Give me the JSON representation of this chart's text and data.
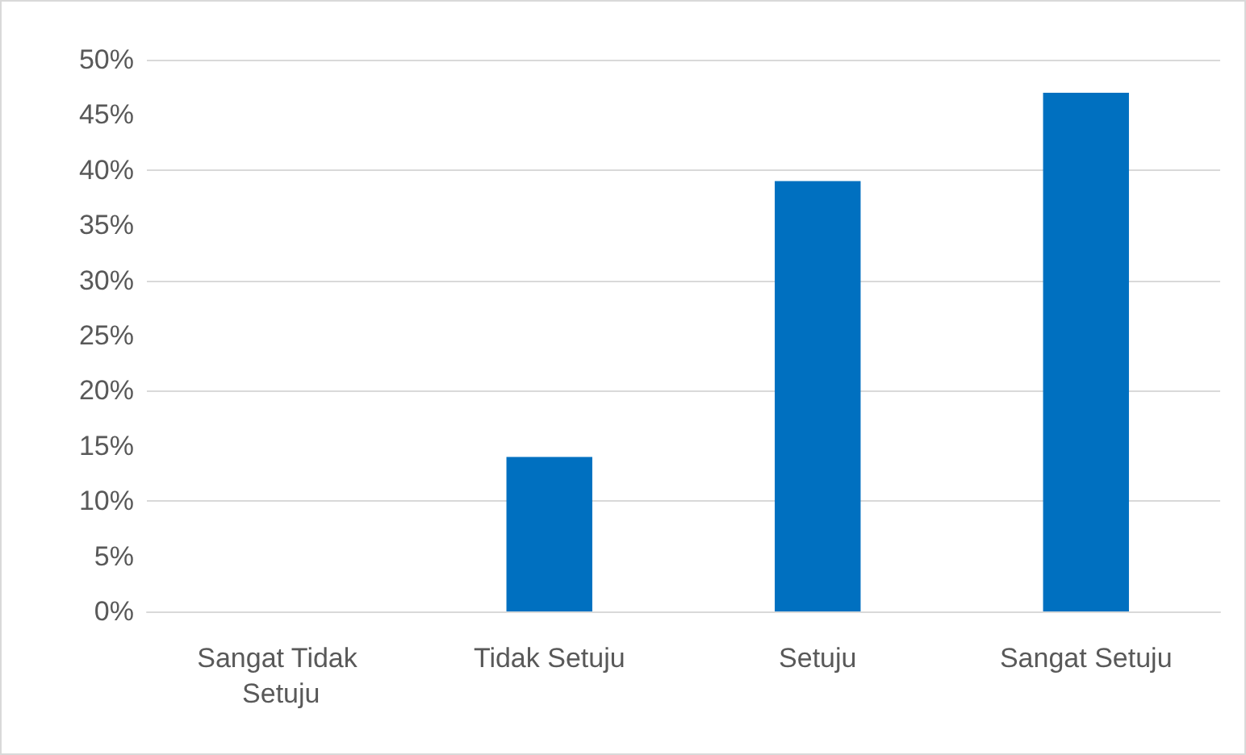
{
  "chart_data": {
    "type": "bar",
    "categories": [
      "Sangat Tidak Setuju",
      "Tidak Setuju",
      "Setuju",
      "Sangat Setuju"
    ],
    "values": [
      0,
      14,
      39,
      47
    ],
    "color": "#0070c0",
    "ylim": [
      0,
      50
    ],
    "yticks": [
      {
        "value": 0,
        "label": "0%"
      },
      {
        "value": 5,
        "label": "5%"
      },
      {
        "value": 10,
        "label": "10%"
      },
      {
        "value": 15,
        "label": "15%"
      },
      {
        "value": 20,
        "label": "20%"
      },
      {
        "value": 25,
        "label": "25%"
      },
      {
        "value": 30,
        "label": "30%"
      },
      {
        "value": 35,
        "label": "35%"
      },
      {
        "value": 40,
        "label": "40%"
      },
      {
        "value": 45,
        "label": "45%"
      },
      {
        "value": 50,
        "label": "50%"
      }
    ],
    "grid": "y"
  }
}
